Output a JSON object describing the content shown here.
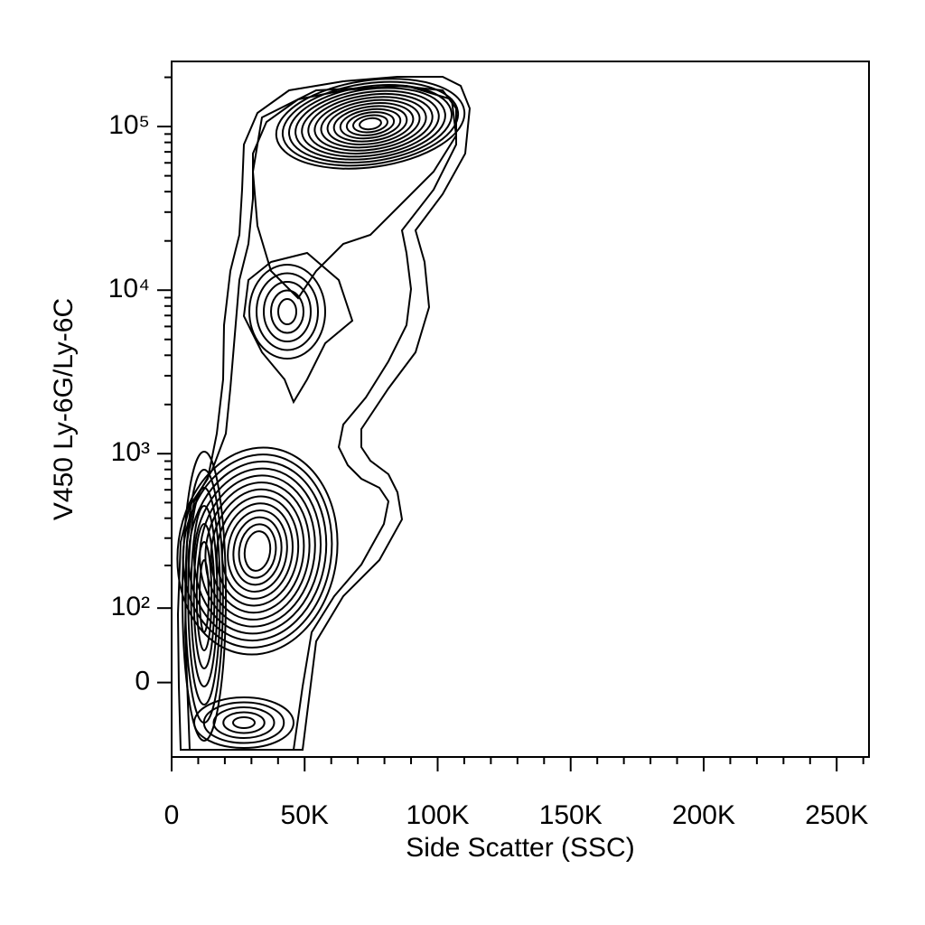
{
  "chart_data": {
    "type": "contour",
    "x_label": "Side Scatter (SSC)",
    "y_label": "V450 Ly-6G/Ly-6C",
    "xlim": [
      0,
      262144
    ],
    "ylim": [
      -100,
      250000
    ],
    "yscale": "biexponential",
    "xticks": [
      0,
      {
        "value": 50000,
        "label": "50K"
      },
      {
        "value": 100000,
        "label": "100K"
      },
      {
        "value": 150000,
        "label": "150K"
      },
      {
        "value": 200000,
        "label": "200K"
      },
      {
        "value": 250000,
        "label": "250K"
      }
    ],
    "yticks": [
      0,
      {
        "value": 100,
        "label": "10²"
      },
      {
        "value": 1000,
        "label": "10³"
      },
      {
        "value": 10000,
        "label": "10⁴"
      },
      {
        "value": 100000,
        "label": "10⁵"
      }
    ],
    "xminorticks": [
      10000,
      20000,
      30000,
      40000,
      60000,
      70000,
      80000,
      90000,
      110000,
      120000,
      130000,
      140000,
      160000,
      170000,
      180000,
      190000,
      210000,
      220000,
      230000,
      240000,
      260000
    ],
    "yminorticks": [
      200,
      300,
      400,
      500,
      600,
      700,
      800,
      900,
      2000,
      3000,
      4000,
      5000,
      6000,
      7000,
      8000,
      9000,
      20000,
      30000,
      40000,
      50000,
      60000,
      70000,
      80000,
      90000,
      200000
    ],
    "color": "#000000"
  }
}
